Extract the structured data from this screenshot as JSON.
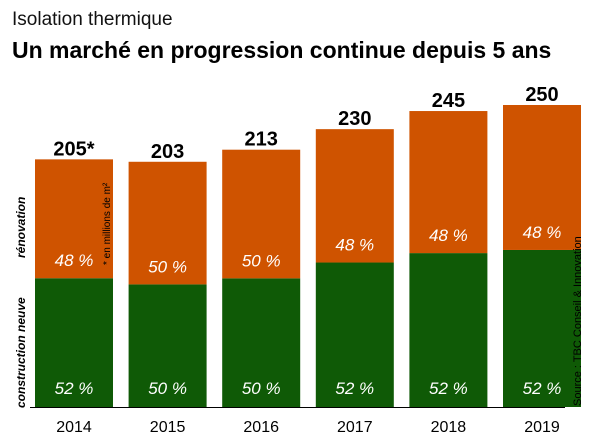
{
  "header": {
    "subtitle": "Isolation thermique",
    "title": "Un marché en progression continue depuis 5 ans"
  },
  "unit_note": "* en millions de m²",
  "source": "Source : TBC Conseil & Innovation",
  "colors": {
    "renovation": "#cf5300",
    "construction": "#0f5a06",
    "share_text": "#ffffff"
  },
  "chart_data": {
    "type": "bar",
    "stacked": true,
    "categories": [
      "2014",
      "2015",
      "2016",
      "2017",
      "2018",
      "2019"
    ],
    "totals": [
      205,
      203,
      213,
      230,
      245,
      250
    ],
    "total_labels": [
      "205*",
      "203",
      "213",
      "230",
      "245",
      "250"
    ],
    "series": [
      {
        "name": "construction neuve",
        "shares": [
          52,
          50,
          50,
          52,
          52,
          52
        ],
        "labels": [
          "52 %",
          "50 %",
          "50 %",
          "52 %",
          "52 %",
          "52 %"
        ]
      },
      {
        "name": "rénovation",
        "shares": [
          48,
          50,
          50,
          48,
          48,
          48
        ],
        "labels": [
          "48 %",
          "50 %",
          "50 %",
          "48 %",
          "48 %",
          "48 %"
        ]
      }
    ],
    "ylim": [
      0,
      250
    ],
    "grid": false,
    "legend": "left, vertical"
  }
}
